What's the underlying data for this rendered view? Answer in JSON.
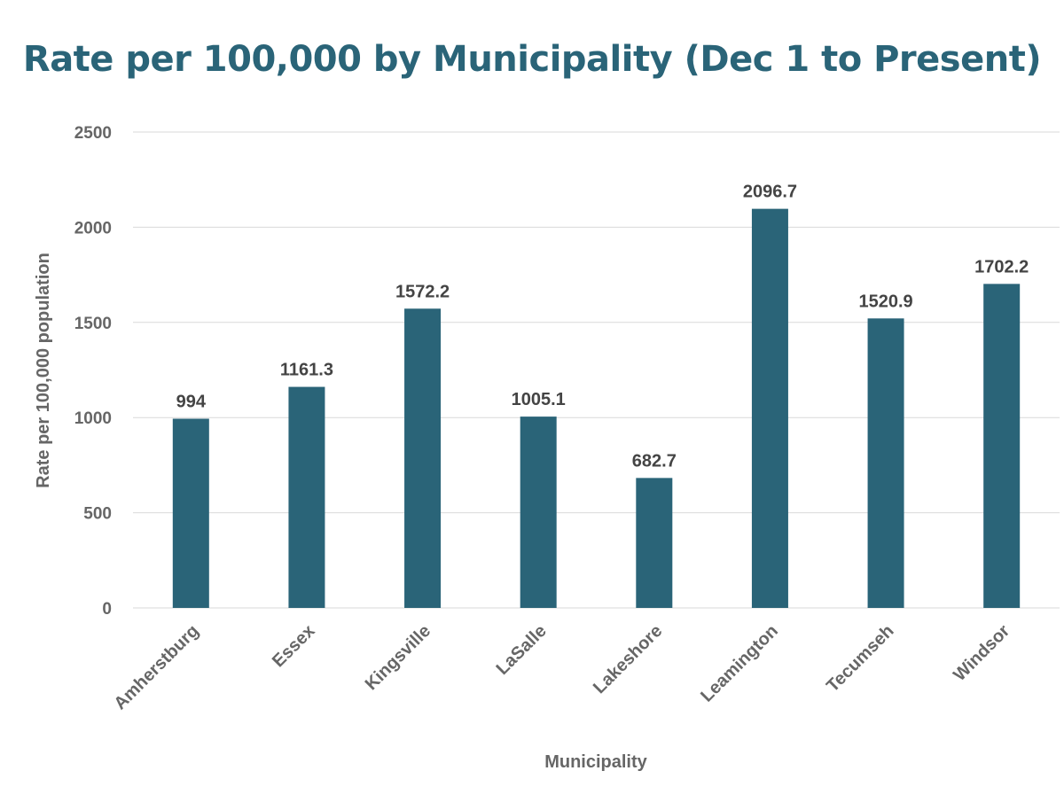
{
  "chart_data": {
    "type": "bar",
    "title": "Rate per 100,000 by Municipality (Dec 1 to Present)",
    "xlabel": "Municipality",
    "ylabel": "Rate per 100,000 population",
    "categories": [
      "Amherstburg",
      "Essex",
      "Kingsville",
      "LaSalle",
      "Lakeshore",
      "Leamington",
      "Tecumseh",
      "Windsor"
    ],
    "values": [
      994,
      1161.3,
      1572.2,
      1005.1,
      682.7,
      2096.7,
      1520.9,
      1702.2
    ],
    "data_labels": [
      "994",
      "1161.3",
      "1572.2",
      "1005.1",
      "682.7",
      "2096.7",
      "1520.9",
      "1702.2"
    ],
    "ylim": [
      0,
      2500
    ],
    "yticks": [
      0,
      500,
      1000,
      1500,
      2000,
      2500
    ],
    "grid": true,
    "bar_color": "#2a6478",
    "title_color": "#2a6478"
  }
}
